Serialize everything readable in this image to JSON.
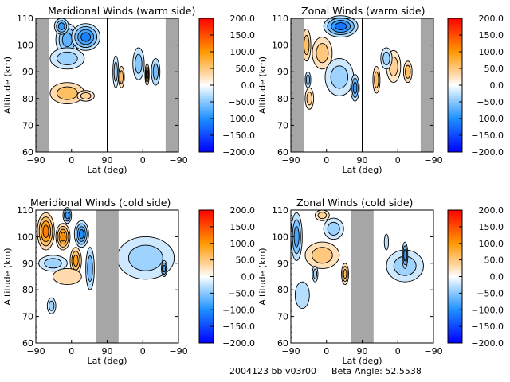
{
  "footer": {
    "run_label": "2004123 bb v03r00",
    "beta_label": "Beta Angle: 52.5538"
  },
  "chart_data": [
    {
      "type": "heatmap",
      "title": "Meridional Winds (warm side)",
      "xlabel": "Lat (deg)",
      "ylabel": "Altitude (km)",
      "xtick_labels": [
        "-90",
        "0",
        "90",
        "0",
        "-90"
      ],
      "yticks": [
        60,
        70,
        80,
        90,
        100,
        110
      ],
      "ylim": [
        60,
        110
      ],
      "colorbar": {
        "ticks": [
          "200.0",
          "150.0",
          "100.0",
          "50.0",
          "0.0",
          "-50.0",
          "-100.0",
          "-150.0",
          "-200.0"
        ],
        "range": [
          -200,
          200
        ]
      },
      "no_data_bands": [
        [
          0,
          0.09
        ],
        [
          0.91,
          1.0
        ]
      ],
      "features": [
        {
          "x": 0.22,
          "y": 102,
          "rx": 0.08,
          "ry": 6,
          "value": -70
        },
        {
          "x": 0.35,
          "y": 103,
          "rx": 0.1,
          "ry": 5,
          "value": -110
        },
        {
          "x": 0.18,
          "y": 107,
          "rx": 0.05,
          "ry": 3,
          "value": -90
        },
        {
          "x": 0.22,
          "y": 95,
          "rx": 0.12,
          "ry": 4,
          "value": -40
        },
        {
          "x": 0.22,
          "y": 82,
          "rx": 0.12,
          "ry": 4,
          "value": 60
        },
        {
          "x": 0.35,
          "y": 81,
          "rx": 0.06,
          "ry": 2,
          "value": 40
        },
        {
          "x": 0.56,
          "y": 90,
          "rx": 0.02,
          "ry": 6,
          "value": -40
        },
        {
          "x": 0.6,
          "y": 88,
          "rx": 0.02,
          "ry": 4,
          "value": 60
        },
        {
          "x": 0.72,
          "y": 93,
          "rx": 0.04,
          "ry": 6,
          "value": -50
        },
        {
          "x": 0.78,
          "y": 89,
          "rx": 0.015,
          "ry": 4,
          "value": 90
        },
        {
          "x": 0.84,
          "y": 90,
          "rx": 0.03,
          "ry": 5,
          "value": -60
        }
      ]
    },
    {
      "type": "heatmap",
      "title": "Zonal Winds (warm side)",
      "xlabel": "Lat (deg)",
      "ylabel": "Altitude (km)",
      "xtick_labels": [
        "-90",
        "0",
        "90",
        "0",
        "-90"
      ],
      "yticks": [
        60,
        70,
        80,
        90,
        100,
        110
      ],
      "ylim": [
        60,
        110
      ],
      "colorbar": {
        "ticks": [
          "200.0",
          "150.0",
          "100.0",
          "50.0",
          "0.0",
          "-50.0",
          "-100.0",
          "-150.0",
          "-200.0"
        ],
        "range": [
          -200,
          200
        ]
      },
      "no_data_bands": [
        [
          0,
          0.09
        ],
        [
          0.91,
          1.0
        ]
      ],
      "features": [
        {
          "x": 0.35,
          "y": 107,
          "rx": 0.12,
          "ry": 4,
          "value": -120
        },
        {
          "x": 0.22,
          "y": 97,
          "rx": 0.07,
          "ry": 6,
          "value": 50
        },
        {
          "x": 0.11,
          "y": 100,
          "rx": 0.03,
          "ry": 6,
          "value": 60
        },
        {
          "x": 0.34,
          "y": 88,
          "rx": 0.1,
          "ry": 7,
          "value": -40
        },
        {
          "x": 0.45,
          "y": 84,
          "rx": 0.03,
          "ry": 5,
          "value": -90
        },
        {
          "x": 0.13,
          "y": 80,
          "rx": 0.03,
          "ry": 4,
          "value": 40
        },
        {
          "x": 0.12,
          "y": 87,
          "rx": 0.02,
          "ry": 3,
          "value": -60
        },
        {
          "x": 0.6,
          "y": 87,
          "rx": 0.025,
          "ry": 5,
          "value": 60
        },
        {
          "x": 0.72,
          "y": 92,
          "rx": 0.05,
          "ry": 6,
          "value": 40
        },
        {
          "x": 0.67,
          "y": 95,
          "rx": 0.04,
          "ry": 4,
          "value": -40
        },
        {
          "x": 0.82,
          "y": 90,
          "rx": 0.03,
          "ry": 4,
          "value": 60
        }
      ]
    },
    {
      "type": "heatmap",
      "title": "Meridional Winds (cold side)",
      "xlabel": "Lat (deg)",
      "ylabel": "Altitude (km)",
      "xtick_labels": [
        "-90",
        "0",
        "90",
        "0",
        "-90"
      ],
      "yticks": [
        60,
        70,
        80,
        90,
        100,
        110
      ],
      "ylim": [
        60,
        110
      ],
      "colorbar": {
        "ticks": [
          "200.0",
          "150.0",
          "100.0",
          "50.0",
          "0.0",
          "-50.0",
          "-100.0",
          "-150.0",
          "-200.0"
        ],
        "range": [
          -200,
          200
        ]
      },
      "no_data_bands": [
        [
          0.42,
          0.58
        ]
      ],
      "features": [
        {
          "x": 0.07,
          "y": 102,
          "rx": 0.06,
          "ry": 7,
          "value": 120
        },
        {
          "x": 0.19,
          "y": 100,
          "rx": 0.05,
          "ry": 5,
          "value": 110
        },
        {
          "x": 0.28,
          "y": 91,
          "rx": 0.04,
          "ry": 5,
          "value": 90
        },
        {
          "x": 0.22,
          "y": 108,
          "rx": 0.03,
          "ry": 3,
          "value": -90
        },
        {
          "x": 0.32,
          "y": 101,
          "rx": 0.05,
          "ry": 5,
          "value": -100
        },
        {
          "x": 0.12,
          "y": 90,
          "rx": 0.1,
          "ry": 3,
          "value": -40
        },
        {
          "x": 0.22,
          "y": 85,
          "rx": 0.1,
          "ry": 3,
          "value": 30
        },
        {
          "x": 0.38,
          "y": 88,
          "rx": 0.03,
          "ry": 8,
          "value": -60
        },
        {
          "x": 0.11,
          "y": 74,
          "rx": 0.03,
          "ry": 3,
          "value": -40
        },
        {
          "x": 0.77,
          "y": 92,
          "rx": 0.2,
          "ry": 8,
          "value": -40
        },
        {
          "x": 0.9,
          "y": 88,
          "rx": 0.02,
          "ry": 3,
          "value": -80
        }
      ]
    },
    {
      "type": "heatmap",
      "title": "Zonal Winds (cold side)",
      "xlabel": "Lat (deg)",
      "ylabel": "Altitude (km)",
      "xtick_labels": [
        "-90",
        "0",
        "90",
        "0",
        "-90"
      ],
      "yticks": [
        60,
        70,
        80,
        90,
        100,
        110
      ],
      "ylim": [
        60,
        110
      ],
      "colorbar": {
        "ticks": [
          "200.0",
          "150.0",
          "100.0",
          "50.0",
          "0.0",
          "-50.0",
          "-100.0",
          "-150.0",
          "-200.0"
        ],
        "range": [
          -200,
          200
        ]
      },
      "no_data_bands": [
        [
          0.42,
          0.58
        ]
      ],
      "features": [
        {
          "x": 0.04,
          "y": 100,
          "rx": 0.04,
          "ry": 9,
          "value": -80
        },
        {
          "x": 0.22,
          "y": 93,
          "rx": 0.12,
          "ry": 5,
          "value": 50
        },
        {
          "x": 0.22,
          "y": 108,
          "rx": 0.05,
          "ry": 2,
          "value": 40
        },
        {
          "x": 0.3,
          "y": 103,
          "rx": 0.07,
          "ry": 4,
          "value": -40
        },
        {
          "x": 0.38,
          "y": 86,
          "rx": 0.025,
          "ry": 4,
          "value": 70
        },
        {
          "x": 0.08,
          "y": 78,
          "rx": 0.05,
          "ry": 5,
          "value": -30
        },
        {
          "x": 0.17,
          "y": 86,
          "rx": 0.02,
          "ry": 3,
          "value": -40
        },
        {
          "x": 0.8,
          "y": 89,
          "rx": 0.13,
          "ry": 6,
          "value": -40
        },
        {
          "x": 0.8,
          "y": 93,
          "rx": 0.02,
          "ry": 5,
          "value": -90
        },
        {
          "x": 0.67,
          "y": 98,
          "rx": 0.015,
          "ry": 3,
          "value": -30
        }
      ]
    }
  ]
}
